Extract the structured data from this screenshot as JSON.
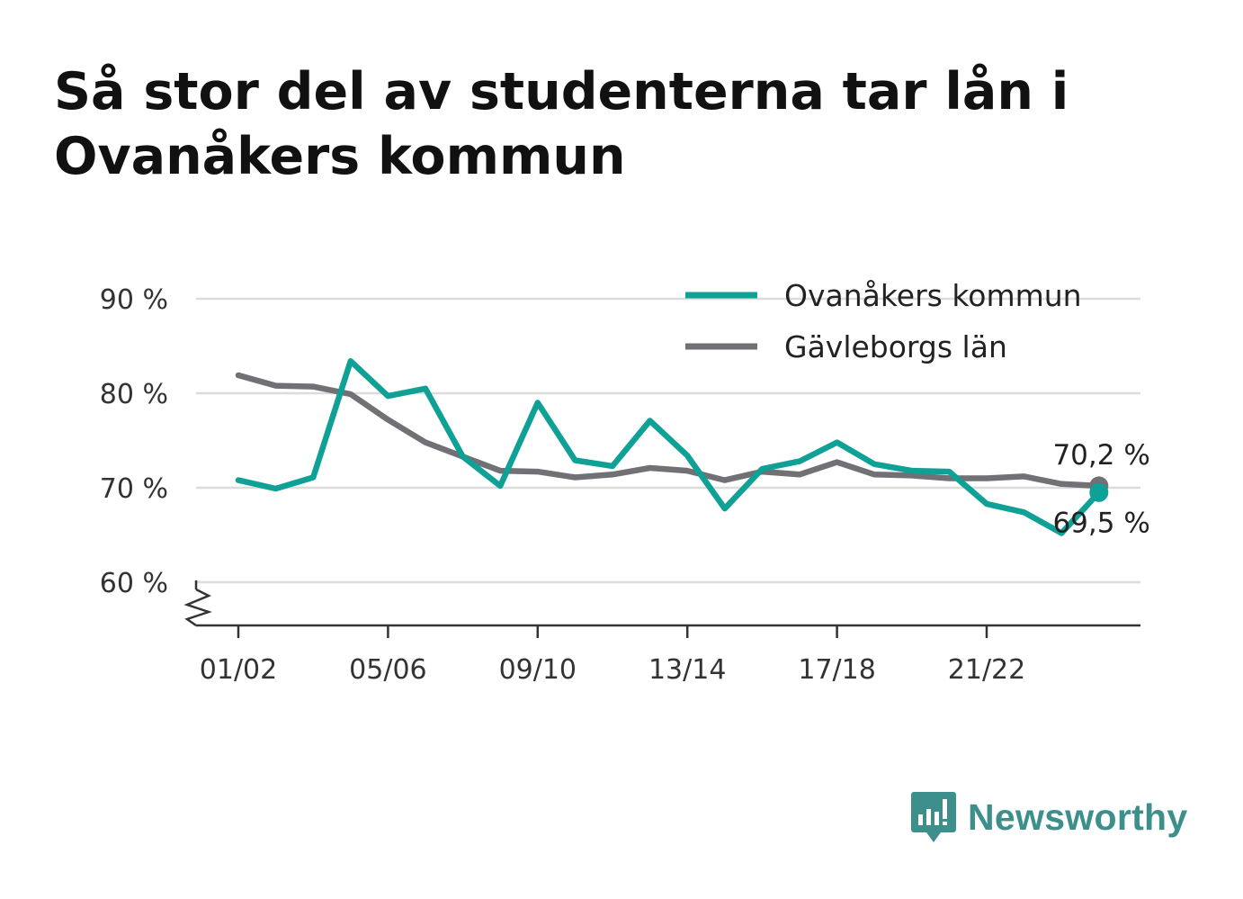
{
  "title": "Så stor del av studenterna tar lån i Ovanåkers kommun",
  "brand": {
    "name": "Newsworthy",
    "icon": "newsworthy-chart-bubble-icon",
    "color": "#3d8f8c"
  },
  "chart_data": {
    "type": "line",
    "title": "Så stor del av studenterna tar lån i Ovanåkers kommun",
    "xlabel": "",
    "ylabel": "",
    "x": [
      "01/02",
      "02/03",
      "03/04",
      "04/05",
      "05/06",
      "06/07",
      "07/08",
      "08/09",
      "09/10",
      "10/11",
      "11/12",
      "12/13",
      "13/14",
      "14/15",
      "15/16",
      "16/17",
      "17/18",
      "18/19",
      "19/20",
      "20/21",
      "21/22",
      "22/23",
      "23/24",
      "24/25"
    ],
    "x_tick_labels": [
      "01/02",
      "05/06",
      "09/10",
      "13/14",
      "17/18",
      "21/22"
    ],
    "ylim": [
      55,
      90
    ],
    "y_ticks": [
      60,
      70,
      80,
      90
    ],
    "y_tick_labels": [
      "60 %",
      "70 %",
      "80 %",
      "90 %"
    ],
    "y_axis_broken": true,
    "grid": "horizontal",
    "legend_position": "top-right",
    "series": [
      {
        "name": "Ovanåkers kommun",
        "color": "#0fa195",
        "values": [
          70.8,
          69.9,
          71.1,
          83.4,
          79.7,
          80.5,
          73.3,
          70.2,
          79.0,
          72.9,
          72.3,
          77.1,
          73.4,
          67.8,
          72.0,
          72.8,
          74.8,
          72.5,
          71.8,
          71.7,
          68.3,
          67.4,
          65.2,
          69.5
        ],
        "end_label": "69,5 %"
      },
      {
        "name": "Gävleborgs län",
        "color": "#707075",
        "values": [
          81.9,
          80.8,
          80.7,
          79.9,
          77.2,
          74.8,
          73.3,
          71.8,
          71.7,
          71.1,
          71.4,
          72.1,
          71.8,
          70.8,
          71.7,
          71.4,
          72.7,
          71.4,
          71.3,
          71.0,
          71.0,
          71.2,
          70.4,
          70.2
        ],
        "end_label": "70,2 %"
      }
    ]
  }
}
